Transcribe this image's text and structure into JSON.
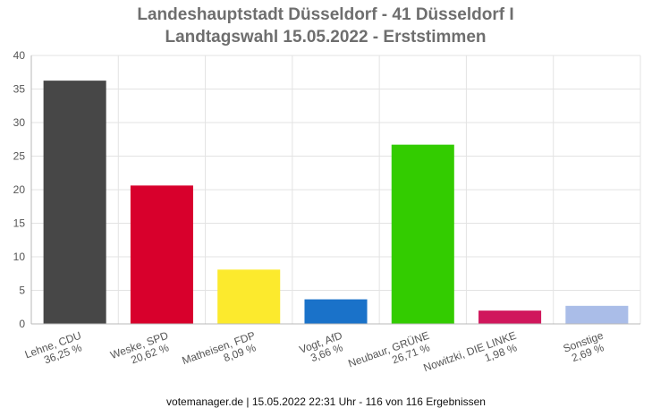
{
  "chart_data": {
    "type": "bar",
    "title": "Landeshauptstadt Düsseldorf - 41 Düsseldorf I",
    "subtitle": "Landtagswahl 15.05.2022  - Erststimmen",
    "categories": [
      "Lehne, CDU",
      "Weske, SPD",
      "Matheisen, FDP",
      "Vogt, AfD",
      "Neubaur, GRÜNE",
      "Nowitzki, DIE LINKE",
      "Sonstige"
    ],
    "percent_labels": [
      "36,25 %",
      "20,62 %",
      "8,09 %",
      "3,66 %",
      "26,71 %",
      "1,98 %",
      "2,69 %"
    ],
    "values": [
      36.25,
      20.62,
      8.09,
      3.66,
      26.71,
      1.98,
      2.69
    ],
    "colors": [
      "#474747",
      "#d8002c",
      "#fcea2d",
      "#1a72c9",
      "#33cc00",
      "#d0175c",
      "#aabde8"
    ],
    "ylim": [
      0,
      40
    ],
    "yticks": [
      0,
      5,
      10,
      15,
      20,
      25,
      30,
      35,
      40
    ],
    "grid": true,
    "xlabel": "",
    "ylabel": ""
  },
  "footer": "votemanager.de | 15.05.2022 22:31 Uhr - 116 von 116 Ergebnissen"
}
